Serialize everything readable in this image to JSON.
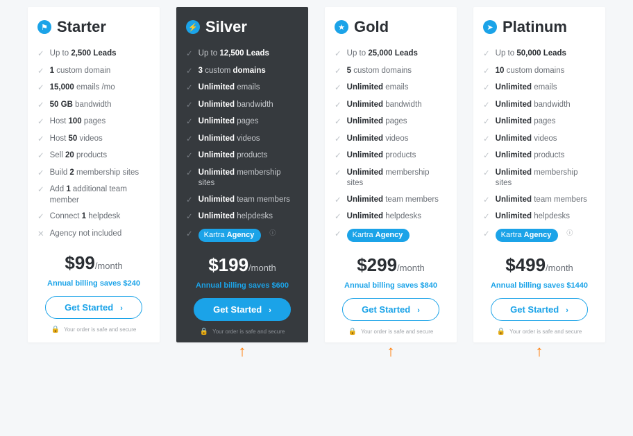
{
  "plans": [
    {
      "name": "Starter",
      "icon": "flag-icon",
      "dark": false,
      "features": [
        {
          "pre": "Up to ",
          "bold": "2,500 Leads",
          "post": ""
        },
        {
          "pre": "",
          "bold": "1",
          "post": " custom domain"
        },
        {
          "pre": "",
          "bold": "15,000",
          "post": " emails /mo"
        },
        {
          "pre": "",
          "bold": "50 GB",
          "post": " bandwidth"
        },
        {
          "pre": "Host ",
          "bold": "100",
          "post": " pages"
        },
        {
          "pre": "Host ",
          "bold": "50",
          "post": " videos"
        },
        {
          "pre": "Sell ",
          "bold": "20",
          "post": " products"
        },
        {
          "pre": "Build ",
          "bold": "2",
          "post": " membership sites"
        },
        {
          "pre": "Add ",
          "bold": "1",
          "post": " additional team member"
        },
        {
          "pre": "Connect ",
          "bold": "1",
          "post": " helpdesk"
        },
        {
          "pre": "Agency not included",
          "bold": "",
          "post": "",
          "x": true
        }
      ],
      "price": "$99",
      "period": "/month",
      "annual": "Annual billing saves $240",
      "cta": "Get Started",
      "secure": "Your order is safe and secure",
      "agency": null,
      "help": false,
      "pointer": false
    },
    {
      "name": "Silver",
      "icon": "bolt-icon",
      "dark": true,
      "features": [
        {
          "pre": "Up to ",
          "bold": "12,500 Leads",
          "post": ""
        },
        {
          "pre": "",
          "bold": "3",
          "post": " custom ",
          "bold2": "domains"
        },
        {
          "pre": "",
          "bold": "Unlimited",
          "post": " emails"
        },
        {
          "pre": "",
          "bold": "Unlimited",
          "post": " bandwidth"
        },
        {
          "pre": "",
          "bold": "Unlimited",
          "post": " pages"
        },
        {
          "pre": "",
          "bold": "Unlimited",
          "post": " videos"
        },
        {
          "pre": "",
          "bold": "Unlimited",
          "post": " products"
        },
        {
          "pre": "",
          "bold": "Unlimited",
          "post": " membership sites"
        },
        {
          "pre": "",
          "bold": "Unlimited",
          "post": " team members"
        },
        {
          "pre": "",
          "bold": "Unlimited",
          "post": " helpdesks"
        }
      ],
      "price": "$199",
      "period": "/month",
      "annual": "Annual billing saves $600",
      "cta": "Get Started",
      "secure": "Your order is safe and secure",
      "agency": {
        "pre": "Kartra ",
        "bold": "Agency"
      },
      "help": true,
      "pointer": true
    },
    {
      "name": "Gold",
      "icon": "star-icon",
      "dark": false,
      "features": [
        {
          "pre": "Up to ",
          "bold": "25,000 Leads",
          "post": ""
        },
        {
          "pre": "",
          "bold": "5",
          "post": " custom domains"
        },
        {
          "pre": "",
          "bold": "Unlimited",
          "post": " emails"
        },
        {
          "pre": "",
          "bold": "Unlimited",
          "post": " bandwidth"
        },
        {
          "pre": "",
          "bold": "Unlimited",
          "post": " pages"
        },
        {
          "pre": "",
          "bold": "Unlimited",
          "post": " videos"
        },
        {
          "pre": "",
          "bold": "Unlimited",
          "post": " products"
        },
        {
          "pre": "",
          "bold": "Unlimited",
          "post": " membership sites"
        },
        {
          "pre": "",
          "bold": "Unlimited",
          "post": " team members"
        },
        {
          "pre": "",
          "bold": "Unlimited",
          "post": " helpdesks"
        }
      ],
      "price": "$299",
      "period": "/month",
      "annual": "Annual billing saves $840",
      "cta": "Get Started",
      "secure": "Your order is safe and secure",
      "agency": {
        "pre": "Kartra ",
        "bold": "Agency"
      },
      "help": false,
      "pointer": true
    },
    {
      "name": "Platinum",
      "icon": "nav-icon",
      "dark": false,
      "features": [
        {
          "pre": "Up to ",
          "bold": "50,000 Leads",
          "post": ""
        },
        {
          "pre": "",
          "bold": "10",
          "post": " custom domains"
        },
        {
          "pre": "",
          "bold": "Unlimited",
          "post": " emails"
        },
        {
          "pre": "",
          "bold": "Unlimited",
          "post": " bandwidth"
        },
        {
          "pre": "",
          "bold": "Unlimited",
          "post": " pages"
        },
        {
          "pre": "",
          "bold": "Unlimited",
          "post": " videos"
        },
        {
          "pre": "",
          "bold": "Unlimited",
          "post": " products"
        },
        {
          "pre": "",
          "bold": "Unlimited",
          "post": " membership sites"
        },
        {
          "pre": "",
          "bold": "Unlimited",
          "post": " team members"
        },
        {
          "pre": "",
          "bold": "Unlimited",
          "post": " helpdesks"
        }
      ],
      "price": "$499",
      "period": "/month",
      "annual": "Annual billing saves $1440",
      "cta": "Get Started",
      "secure": "Your order is safe and secure",
      "agency": {
        "pre": "Kartra ",
        "bold": "Agency"
      },
      "help": true,
      "pointer": true
    }
  ],
  "colors": {
    "accent": "#1ba3e8",
    "dark_bg": "#363a3e",
    "pointer": "#ff7a00"
  }
}
